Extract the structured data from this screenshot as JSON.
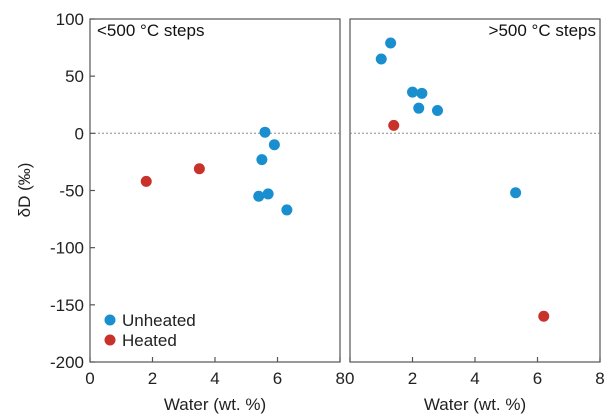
{
  "chart_data": [
    {
      "type": "scatter",
      "title": "<500 °C steps",
      "xlabel": "Water (wt. %)",
      "ylabel": "δD (‰)",
      "xlim": [
        0,
        8
      ],
      "ylim": [
        -200,
        100
      ],
      "xticks": [
        "0",
        "2",
        "4",
        "6",
        "8"
      ],
      "yticks": [
        "100",
        "50",
        "0",
        "-50",
        "-100",
        "-150",
        "-200"
      ],
      "reference_line": {
        "y": 0,
        "style": "dotted"
      },
      "legend": {
        "placement": "bottom-left",
        "entries": [
          "Unheated",
          "Heated"
        ]
      },
      "series": [
        {
          "name": "Unheated",
          "color": "#1a8fd0",
          "points": [
            {
              "x": 5.6,
              "y": 1
            },
            {
              "x": 5.9,
              "y": -10
            },
            {
              "x": 5.5,
              "y": -23
            },
            {
              "x": 5.4,
              "y": -55
            },
            {
              "x": 5.7,
              "y": -53
            },
            {
              "x": 6.3,
              "y": -67
            }
          ]
        },
        {
          "name": "Heated",
          "color": "#c8322b",
          "points": [
            {
              "x": 1.8,
              "y": -42
            },
            {
              "x": 3.5,
              "y": -31
            }
          ]
        }
      ]
    },
    {
      "type": "scatter",
      "title": ">500 °C steps",
      "xlabel": "Water (wt. %)",
      "xlim": [
        0,
        8
      ],
      "ylim": [
        -200,
        100
      ],
      "xticks": [
        "0",
        "2",
        "4",
        "6",
        "8"
      ],
      "reference_line": {
        "y": 0,
        "style": "dotted"
      },
      "series": [
        {
          "name": "Unheated",
          "color": "#1a8fd0",
          "points": [
            {
              "x": 1.0,
              "y": 65
            },
            {
              "x": 1.3,
              "y": 79
            },
            {
              "x": 2.0,
              "y": 36
            },
            {
              "x": 2.3,
              "y": 35
            },
            {
              "x": 2.2,
              "y": 22
            },
            {
              "x": 2.8,
              "y": 20
            },
            {
              "x": 5.3,
              "y": -52
            }
          ]
        },
        {
          "name": "Heated",
          "color": "#c8322b",
          "points": [
            {
              "x": 1.4,
              "y": 7
            },
            {
              "x": 6.2,
              "y": -160
            }
          ]
        }
      ]
    }
  ]
}
